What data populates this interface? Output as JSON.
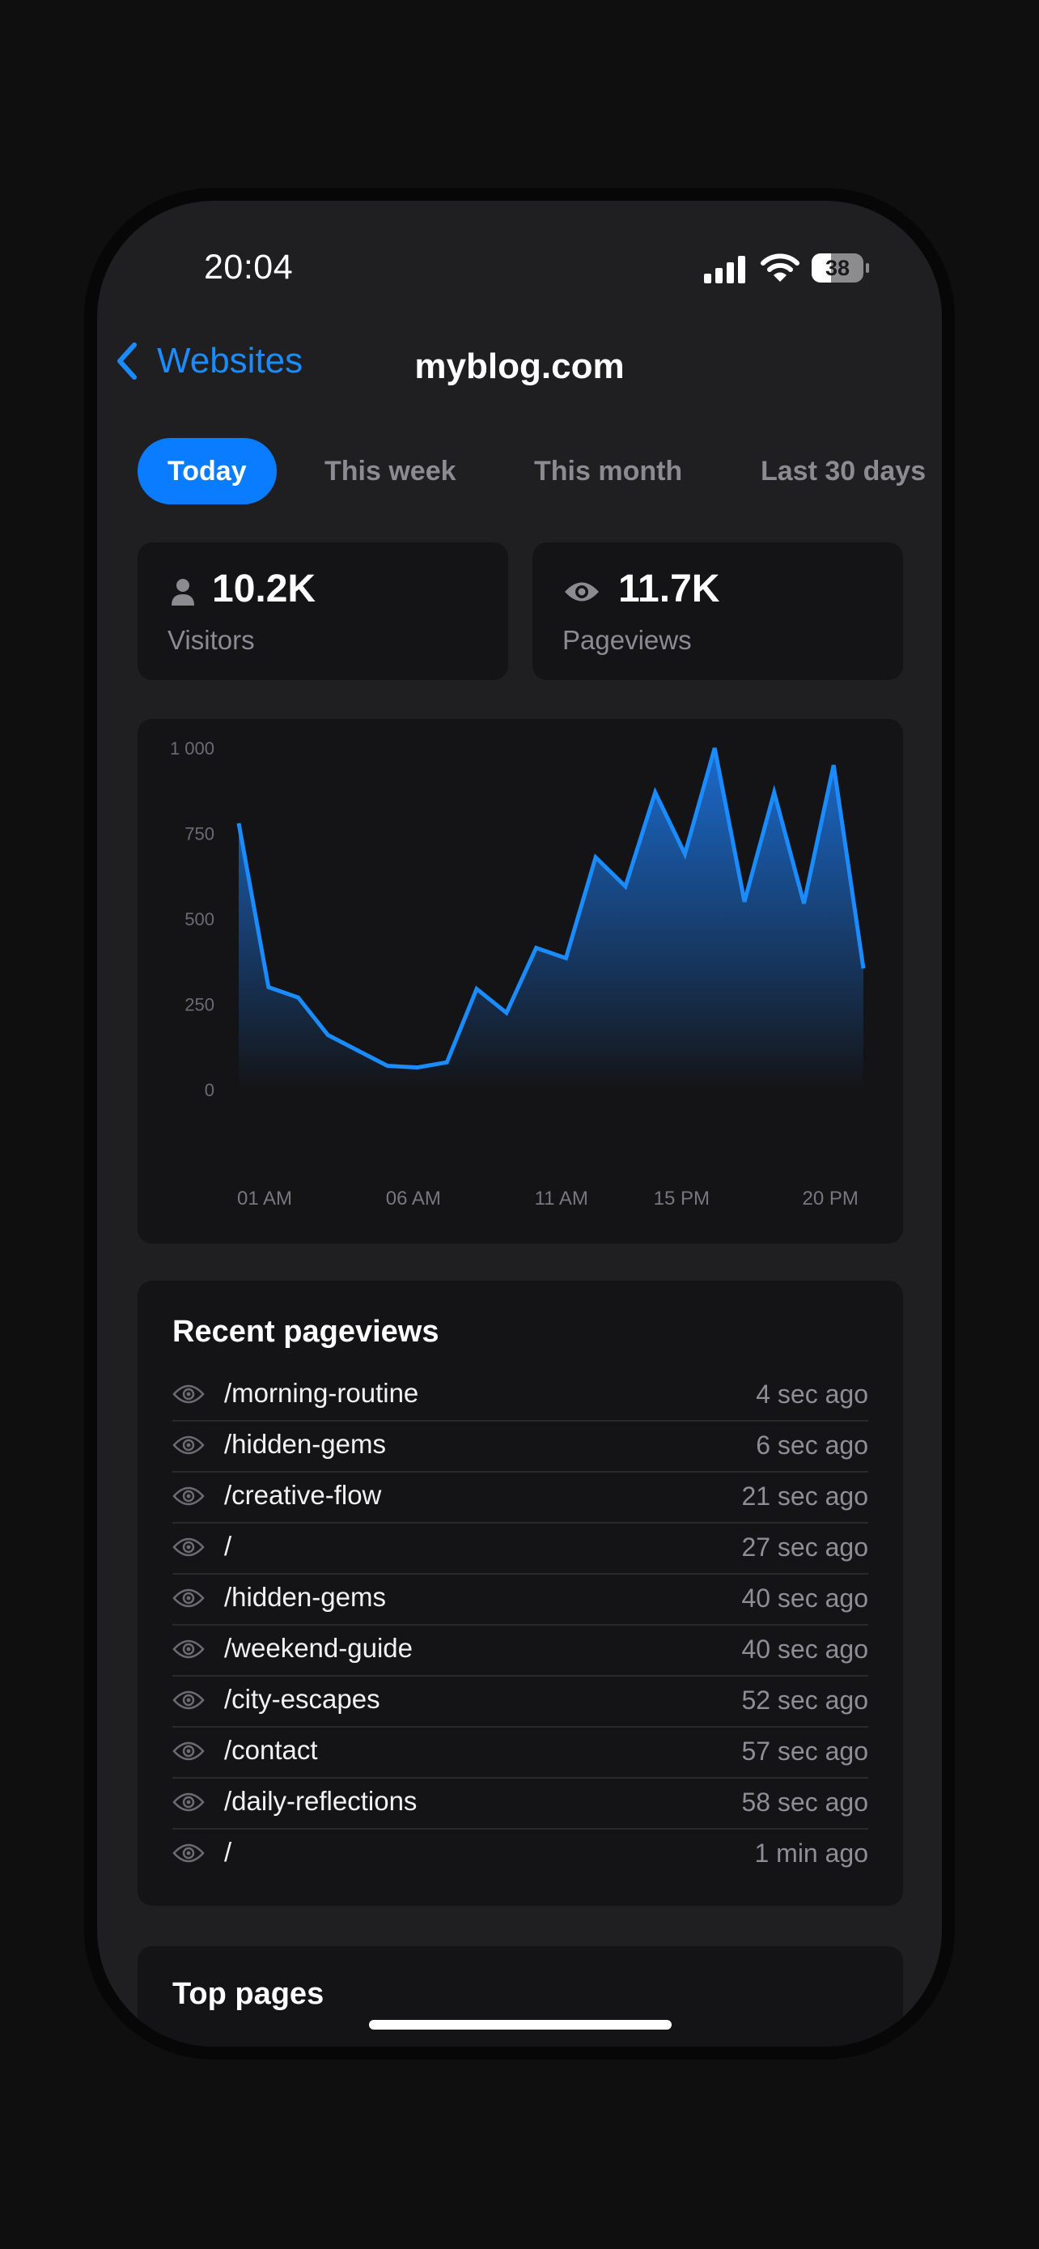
{
  "status_bar": {
    "time": "20:04",
    "battery_level": 38,
    "battery_text": "38"
  },
  "nav": {
    "back_label": "Websites",
    "title": "myblog.com"
  },
  "tabs": [
    "Today",
    "This week",
    "This month",
    "Last 30 days"
  ],
  "active_tab": "Today",
  "stats": {
    "visitors": {
      "value": "10.2K",
      "label": "Visitors",
      "icon": "person-icon"
    },
    "pageviews": {
      "value": "11.7K",
      "label": "Pageviews",
      "icon": "eye-icon"
    }
  },
  "chart_data": {
    "type": "area",
    "series": [
      {
        "x": [
          1,
          2,
          3,
          4,
          5,
          6,
          7,
          8,
          9,
          10,
          11,
          12,
          13,
          14,
          15,
          16,
          17,
          18,
          19,
          20,
          21,
          22
        ],
        "values": [
          780,
          300,
          270,
          160,
          115,
          70,
          65,
          80,
          295,
          225,
          415,
          385,
          680,
          595,
          870,
          690,
          1000,
          550,
          870,
          545,
          950,
          355
        ]
      }
    ],
    "x_tick_labels": [
      {
        "x": 1,
        "label": "01 AM"
      },
      {
        "x": 6,
        "label": "06 AM"
      },
      {
        "x": 11,
        "label": "11 AM"
      },
      {
        "x": 15,
        "label": "15 PM"
      },
      {
        "x": 20,
        "label": "20 PM"
      }
    ],
    "y_ticks": [
      0,
      250,
      500,
      750,
      1000
    ],
    "y_tick_labels": [
      "0",
      "250",
      "500",
      "750",
      "1 000"
    ],
    "ylim": [
      0,
      1000
    ],
    "xlim": [
      1,
      22
    ],
    "grid": false,
    "color": "#1b8cff"
  },
  "recent": {
    "title": "Recent pageviews",
    "items": [
      {
        "path": "/morning-routine",
        "ago": "4 sec ago"
      },
      {
        "path": "/hidden-gems",
        "ago": "6 sec ago"
      },
      {
        "path": "/creative-flow",
        "ago": "21 sec ago"
      },
      {
        "path": "/",
        "ago": "27 sec ago"
      },
      {
        "path": "/hidden-gems",
        "ago": "40 sec ago"
      },
      {
        "path": "/weekend-guide",
        "ago": "40 sec ago"
      },
      {
        "path": "/city-escapes",
        "ago": "52 sec ago"
      },
      {
        "path": "/contact",
        "ago": "57 sec ago"
      },
      {
        "path": "/daily-reflections",
        "ago": "58 sec ago"
      },
      {
        "path": "/",
        "ago": "1 min ago"
      }
    ]
  },
  "top_pages": {
    "title": "Top pages"
  },
  "colors": {
    "accent": "#0a7cff",
    "background": "#1f1f21",
    "card": "#141416",
    "muted": "#8b8b90"
  }
}
